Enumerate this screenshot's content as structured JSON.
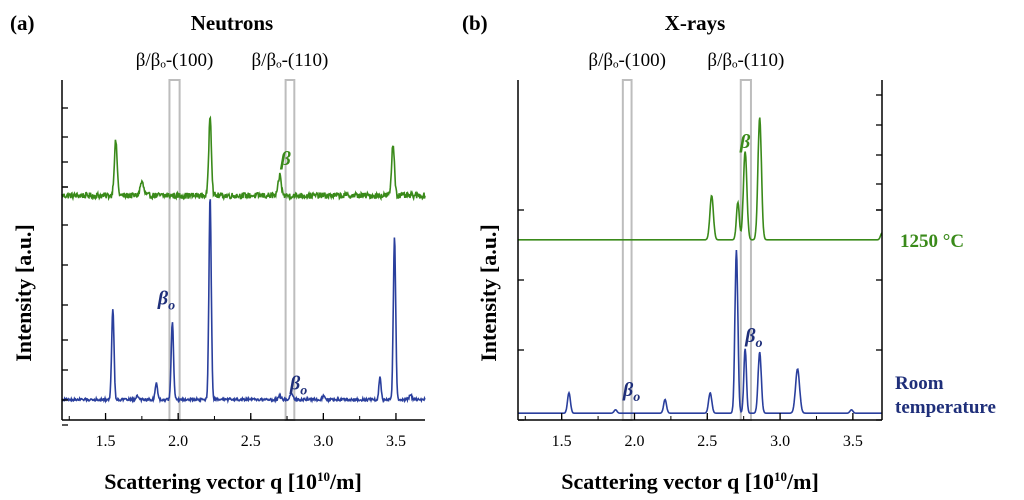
{
  "colors": {
    "neutral": "#000000",
    "rt_series": "#2a3f9d",
    "ht_series": "#3a8a1a",
    "rt_label": "#1f2f7a",
    "ht_label": "#3a8a1a",
    "highlight_box": "#bdbdbd"
  },
  "chart_data": [
    {
      "panel": "(a)",
      "title": "Neutrons",
      "type": "line",
      "xlabel": "Scattering vector q [10",
      "xlabel_sup": "10",
      "xlabel_unit": "/m]",
      "xlim": [
        1.2,
        3.7
      ],
      "xticks": [
        1.5,
        2.0,
        2.5,
        3.0,
        3.5
      ],
      "xtick_labels": [
        "1.5",
        "2.0",
        "2.5",
        "3.0",
        "3.5"
      ],
      "ylabel": "Intensity [a.u.]",
      "ylim": [
        0,
        1
      ],
      "highlight_bands": [
        {
          "label": "β/βₒ-(100)",
          "x": [
            1.94,
            2.01
          ]
        },
        {
          "label": "β/βₒ-(110)",
          "x": [
            2.74,
            2.8
          ]
        }
      ],
      "series": [
        {
          "name": "1250 °C",
          "baseline": 0.66,
          "noise": 0.009,
          "peaks": [
            [
              1.57,
              0.16,
              0.01
            ],
            [
              1.75,
              0.04,
              0.012
            ],
            [
              2.22,
              0.24,
              0.009
            ],
            [
              2.7,
              0.06,
              0.01
            ],
            [
              3.48,
              0.15,
              0.01
            ]
          ],
          "annotation": {
            "text": "β",
            "x": 2.74,
            "y": 0.75
          }
        },
        {
          "name": "Room temperature",
          "baseline": 0.06,
          "noise": 0.004,
          "peaks": [
            [
              1.55,
              0.27,
              0.008
            ],
            [
              1.72,
              0.01,
              0.01
            ],
            [
              1.85,
              0.05,
              0.008
            ],
            [
              1.96,
              0.23,
              0.008
            ],
            [
              2.22,
              0.6,
              0.008
            ],
            [
              2.7,
              0.01,
              0.01
            ],
            [
              2.78,
              0.02,
              0.01
            ],
            [
              3.0,
              0.01,
              0.008
            ],
            [
              3.39,
              0.07,
              0.007
            ],
            [
              3.49,
              0.48,
              0.008
            ],
            [
              3.6,
              0.015,
              0.008
            ]
          ],
          "annotations": [
            {
              "text": "β",
              "sub": "o",
              "x": 1.92,
              "y": 0.34
            },
            {
              "text": "β",
              "sub": "o",
              "x": 2.83,
              "y": 0.09
            }
          ]
        }
      ]
    },
    {
      "panel": "(b)",
      "title": "X-rays",
      "type": "line",
      "xlabel": "Scattering vector q [10",
      "xlabel_sup": "10",
      "xlabel_unit": "/m]",
      "xlim": [
        1.2,
        3.7
      ],
      "xticks": [
        1.5,
        2.0,
        2.5,
        3.0,
        3.5
      ],
      "xtick_labels": [
        "1.5",
        "2.0",
        "2.5",
        "3.0",
        "3.5"
      ],
      "ylabel": "Intensity [a.u.]",
      "ylim": [
        0,
        1
      ],
      "highlight_bands": [
        {
          "label": "β/βₒ-(100)",
          "x": [
            1.92,
            1.98
          ]
        },
        {
          "label": "β/βₒ-(110)",
          "x": [
            2.73,
            2.8
          ]
        }
      ],
      "series": [
        {
          "name": "1250 °C",
          "baseline": 0.53,
          "noise": 0.0,
          "peaks": [
            [
              2.53,
              0.13,
              0.012
            ],
            [
              2.71,
              0.11,
              0.01
            ],
            [
              2.76,
              0.26,
              0.012
            ],
            [
              2.86,
              0.36,
              0.012
            ],
            [
              3.7,
              0.02,
              0.01
            ]
          ],
          "annotation": {
            "text": "β",
            "x": 2.76,
            "y": 0.8
          }
        },
        {
          "name": "Room temperature",
          "baseline": 0.02,
          "noise": 0.0,
          "peaks": [
            [
              1.55,
              0.06,
              0.01
            ],
            [
              1.87,
              0.01,
              0.01
            ],
            [
              2.21,
              0.04,
              0.01
            ],
            [
              2.52,
              0.06,
              0.011
            ],
            [
              2.7,
              0.48,
              0.01
            ],
            [
              2.76,
              0.19,
              0.009
            ],
            [
              2.86,
              0.18,
              0.011
            ],
            [
              3.12,
              0.13,
              0.014
            ],
            [
              3.49,
              0.01,
              0.01
            ]
          ],
          "annotations": [
            {
              "text": "β",
              "sub": "o",
              "x": 1.98,
              "y": 0.07
            },
            {
              "text": "β",
              "sub": "o",
              "x": 2.82,
              "y": 0.23
            }
          ]
        }
      ],
      "series_labels": [
        {
          "text": "1250 °C",
          "target_y": 0.53
        },
        {
          "text": "Room",
          "line2": "temperature",
          "target_y": 0.07
        }
      ]
    }
  ]
}
